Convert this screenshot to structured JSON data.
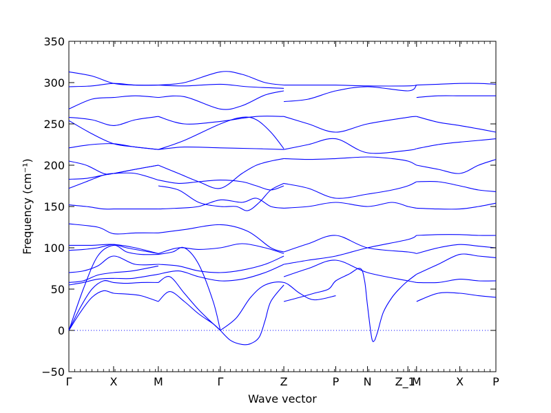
{
  "chart_data": {
    "type": "line",
    "title": "",
    "xlabel": "Wave vector",
    "ylabel": "Frequency (cm⁻¹)",
    "ylim": [
      -50,
      350
    ],
    "yticks": [
      -50,
      0,
      50,
      100,
      150,
      200,
      250,
      300,
      350
    ],
    "xlim": [
      0,
      14.8
    ],
    "hsym_points": [
      {
        "label": "Γ",
        "x": 0
      },
      {
        "label": "X",
        "x": 1.55
      },
      {
        "label": "M",
        "x": 3.1
      },
      {
        "label": "Γ",
        "x": 5.25
      },
      {
        "label": "Z",
        "x": 7.45
      },
      {
        "label": "P",
        "x": 9.25
      },
      {
        "label": "N",
        "x": 10.35
      },
      {
        "label": "Z_1",
        "x": 11.75
      },
      {
        "label": "M",
        "x": 12.05
      },
      {
        "label": "X",
        "x": 13.55
      },
      {
        "label": "P",
        "x": 14.8
      }
    ],
    "zero_line": {
      "y": 0,
      "style": "dotted"
    },
    "grid": false,
    "series_color": "#0000ff",
    "series": [
      {
        "x": [
          0,
          0.4,
          0.8,
          1.2,
          1.55,
          2.0,
          2.5,
          3.1
        ],
        "y": [
          0,
          22,
          40,
          48,
          45,
          44,
          42,
          35
        ]
      },
      {
        "x": [
          0,
          0.4,
          0.8,
          1.2,
          1.55,
          2.0,
          2.5,
          3.1
        ],
        "y": [
          0,
          28,
          50,
          60,
          58,
          57,
          58,
          58
        ]
      },
      {
        "x": [
          0,
          0.5,
          1.0,
          1.55,
          2.0,
          2.5,
          3.1
        ],
        "y": [
          0,
          50,
          90,
          103,
          95,
          92,
          92
        ]
      },
      {
        "x": [
          3.1,
          3.5,
          4.0,
          4.5,
          5.0,
          5.25
        ],
        "y": [
          35,
          47,
          35,
          20,
          8,
          0
        ]
      },
      {
        "x": [
          3.1,
          3.5,
          4.0,
          4.5,
          5.0,
          5.25
        ],
        "y": [
          58,
          65,
          45,
          25,
          8,
          0
        ]
      },
      {
        "x": [
          3.1,
          3.6,
          4.0,
          4.5,
          5.0,
          5.25
        ],
        "y": [
          92,
          95,
          100,
          80,
          35,
          0
        ]
      },
      {
        "x": [
          5.25,
          5.6,
          6.0,
          6.3,
          6.6,
          6.8,
          7.0,
          7.45
        ],
        "y": [
          0,
          -12,
          -17,
          -16,
          -8,
          12,
          35,
          55
        ]
      },
      {
        "x": [
          5.25,
          5.8,
          6.3,
          6.8,
          7.45,
          8.0,
          8.5,
          9.25
        ],
        "y": [
          0,
          15,
          40,
          55,
          58,
          45,
          37,
          42
        ]
      },
      {
        "x": [
          7.45,
          8.0,
          8.5,
          9.0,
          9.25,
          9.7,
          10.1,
          10.25,
          10.35,
          10.5,
          10.6
        ],
        "y": [
          35,
          40,
          45,
          50,
          60,
          68,
          75,
          60,
          30,
          -10,
          -12
        ]
      },
      {
        "x": [
          10.6,
          10.7,
          10.9,
          11.2,
          11.5,
          11.75,
          12.05
        ],
        "y": [
          -12,
          -2,
          22,
          40,
          52,
          60,
          68
        ]
      },
      {
        "x": [
          0,
          0.5,
          1.0,
          1.55,
          2.2,
          3.1
        ],
        "y": [
          55,
          58,
          62,
          63,
          63,
          68
        ]
      },
      {
        "x": [
          0,
          0.5,
          1.0,
          1.55,
          2.2,
          3.1
        ],
        "y": [
          58,
          60,
          67,
          70,
          72,
          78
        ]
      },
      {
        "x": [
          0,
          0.5,
          1.0,
          1.55,
          2.3,
          3.1
        ],
        "y": [
          70,
          72,
          78,
          90,
          80,
          80
        ]
      },
      {
        "x": [
          0,
          0.5,
          1.0,
          1.55,
          2.0,
          3.1
        ],
        "y": [
          97,
          98,
          100,
          104,
          100,
          93
        ]
      },
      {
        "x": [
          0,
          0.8,
          1.55,
          2.3,
          3.1
        ],
        "y": [
          103,
          103,
          104,
          100,
          93
        ]
      },
      {
        "x": [
          3.1,
          3.8,
          4.5,
          5.25,
          6.0,
          6.8,
          7.45
        ],
        "y": [
          68,
          72,
          65,
          60,
          62,
          70,
          80
        ]
      },
      {
        "x": [
          3.1,
          3.8,
          4.5,
          5.25,
          6.0,
          6.8,
          7.45
        ],
        "y": [
          80,
          78,
          72,
          70,
          73,
          80,
          90
        ]
      },
      {
        "x": [
          3.1,
          3.8,
          4.5,
          5.25,
          6.0,
          6.8,
          7.45
        ],
        "y": [
          93,
          100,
          98,
          100,
          105,
          100,
          93
        ]
      },
      {
        "x": [
          0,
          1.0,
          1.55,
          2.3,
          3.1
        ],
        "y": [
          129,
          125,
          117,
          118,
          118
        ]
      },
      {
        "x": [
          3.1,
          4.0,
          5.25,
          6.2,
          7.0,
          7.45
        ],
        "y": [
          118,
          122,
          128,
          120,
          100,
          95
        ]
      },
      {
        "x": [
          7.45,
          8.3,
          9.25,
          10.35,
          11.75,
          12.05
        ],
        "y": [
          95,
          105,
          115,
          100,
          95,
          93
        ]
      },
      {
        "x": [
          7.45,
          8.3,
          9.25,
          10.35,
          11.75,
          12.05
        ],
        "y": [
          80,
          85,
          90,
          100,
          110,
          115
        ]
      },
      {
        "x": [
          7.45,
          8.3,
          9.25,
          10.35,
          11.75,
          12.05
        ],
        "y": [
          65,
          75,
          85,
          70,
          60,
          58
        ]
      },
      {
        "x": [
          12.05,
          12.8,
          13.55,
          14.2,
          14.8
        ],
        "y": [
          115,
          116,
          116,
          115,
          115
        ]
      },
      {
        "x": [
          12.05,
          12.8,
          13.55,
          14.2,
          14.8
        ],
        "y": [
          93,
          100,
          104,
          102,
          100
        ]
      },
      {
        "x": [
          12.05,
          12.8,
          13.55,
          14.2,
          14.8
        ],
        "y": [
          68,
          80,
          92,
          90,
          88
        ]
      },
      {
        "x": [
          12.05,
          12.8,
          13.55,
          14.2,
          14.8
        ],
        "y": [
          58,
          58,
          62,
          60,
          60
        ]
      },
      {
        "x": [
          12.05,
          12.8,
          13.55,
          14.2,
          14.8
        ],
        "y": [
          35,
          45,
          45,
          42,
          40
        ]
      },
      {
        "x": [
          0,
          0.6,
          1.2,
          1.55,
          2.3,
          3.1
        ],
        "y": [
          152,
          150,
          147,
          147,
          147,
          147
        ]
      },
      {
        "x": [
          0,
          0.6,
          1.2,
          1.55,
          2.3,
          3.1
        ],
        "y": [
          172,
          180,
          188,
          190,
          190,
          182
        ]
      },
      {
        "x": [
          0,
          0.6,
          1.2,
          1.55,
          2.3,
          3.1
        ],
        "y": [
          183,
          184,
          188,
          190,
          195,
          200
        ]
      },
      {
        "x": [
          0,
          0.6,
          1.2,
          1.55,
          2.3,
          3.1
        ],
        "y": [
          205,
          200,
          190,
          190,
          195,
          200
        ]
      },
      {
        "x": [
          3.1,
          3.8,
          4.5,
          5.25,
          6.0,
          6.5,
          7.0,
          7.45
        ],
        "y": [
          200,
          190,
          180,
          172,
          190,
          200,
          205,
          208
        ]
      },
      {
        "x": [
          3.1,
          3.8,
          4.5,
          5.25,
          6.0,
          6.5,
          7.0,
          7.45
        ],
        "y": [
          182,
          178,
          180,
          182,
          180,
          175,
          170,
          175
        ]
      },
      {
        "x": [
          3.1,
          3.8,
          4.5,
          5.25,
          6.0,
          6.5,
          7.0,
          7.45
        ],
        "y": [
          147,
          148,
          150,
          158,
          155,
          160,
          150,
          148
        ]
      },
      {
        "x": [
          3.1,
          3.8,
          4.5,
          5.25,
          5.8,
          6.2,
          6.6,
          7.0,
          7.45
        ],
        "y": [
          175,
          170,
          155,
          150,
          150,
          145,
          155,
          170,
          178
        ]
      },
      {
        "x": [
          7.45,
          8.3,
          9.25,
          10.35,
          11.2,
          11.75,
          12.05
        ],
        "y": [
          208,
          207,
          208,
          210,
          208,
          205,
          200
        ]
      },
      {
        "x": [
          7.45,
          8.3,
          9.25,
          10.35,
          11.2,
          11.75,
          12.05
        ],
        "y": [
          178,
          172,
          160,
          165,
          170,
          175,
          180
        ]
      },
      {
        "x": [
          7.45,
          8.3,
          9.25,
          10.35,
          11.2,
          11.75,
          12.05
        ],
        "y": [
          148,
          150,
          155,
          150,
          155,
          150,
          148
        ]
      },
      {
        "x": [
          12.05,
          12.8,
          13.55,
          14.2,
          14.8
        ],
        "y": [
          148,
          147,
          147,
          150,
          154
        ]
      },
      {
        "x": [
          12.05,
          12.8,
          13.55,
          14.2,
          14.8
        ],
        "y": [
          180,
          180,
          175,
          170,
          168
        ]
      },
      {
        "x": [
          12.05,
          12.8,
          13.55,
          14.2,
          14.8
        ],
        "y": [
          200,
          195,
          190,
          200,
          207
        ]
      },
      {
        "x": [
          0,
          0.8,
          1.55,
          2.3,
          3.1
        ],
        "y": [
          221,
          225,
          226,
          222,
          219
        ]
      },
      {
        "x": [
          0,
          0.8,
          1.55,
          2.3,
          3.1
        ],
        "y": [
          254,
          238,
          226,
          222,
          219
        ]
      },
      {
        "x": [
          0,
          0.8,
          1.55,
          2.3,
          3.1
        ],
        "y": [
          258,
          255,
          248,
          255,
          259
        ]
      },
      {
        "x": [
          3.1,
          4.0,
          5.25,
          6.5,
          7.45
        ],
        "y": [
          219,
          222,
          221,
          220,
          219
        ]
      },
      {
        "x": [
          3.1,
          4.0,
          5.25,
          6.5,
          7.45
        ],
        "y": [
          259,
          250,
          253,
          259,
          259
        ]
      },
      {
        "x": [
          3.1,
          4.0,
          5.25,
          6.0,
          6.5,
          7.0,
          7.45
        ],
        "y": [
          219,
          230,
          250,
          258,
          255,
          240,
          220
        ]
      },
      {
        "x": [
          7.45,
          8.3,
          9.25,
          10.35,
          11.75,
          12.05
        ],
        "y": [
          219,
          225,
          232,
          215,
          218,
          220
        ]
      },
      {
        "x": [
          7.45,
          8.3,
          9.25,
          10.35,
          11.75,
          12.05
        ],
        "y": [
          259,
          250,
          240,
          250,
          258,
          259
        ]
      },
      {
        "x": [
          12.05,
          12.8,
          13.55,
          14.2,
          14.8
        ],
        "y": [
          220,
          225,
          228,
          230,
          232
        ]
      },
      {
        "x": [
          12.05,
          12.8,
          13.55,
          14.2,
          14.8
        ],
        "y": [
          259,
          252,
          248,
          244,
          240
        ]
      },
      {
        "x": [
          0,
          0.8,
          1.55,
          2.3,
          3.1
        ],
        "y": [
          268,
          280,
          282,
          284,
          282
        ]
      },
      {
        "x": [
          0,
          0.8,
          1.55,
          2.3,
          3.1
        ],
        "y": [
          295,
          296,
          299,
          297,
          297
        ]
      },
      {
        "x": [
          0,
          0.8,
          1.55,
          2.3,
          3.1
        ],
        "y": [
          313,
          308,
          299,
          297,
          297
        ]
      },
      {
        "x": [
          3.1,
          4.0,
          5.25,
          6.0,
          6.8,
          7.45
        ],
        "y": [
          282,
          283,
          268,
          272,
          285,
          290
        ]
      },
      {
        "x": [
          3.1,
          4.0,
          5.25,
          6.0,
          6.8,
          7.45
        ],
        "y": [
          297,
          300,
          313,
          310,
          300,
          297
        ]
      },
      {
        "x": [
          3.1,
          4.0,
          5.25,
          6.2,
          7.45
        ],
        "y": [
          297,
          296,
          298,
          295,
          293
        ]
      },
      {
        "x": [
          7.45,
          8.3,
          9.25,
          10.35,
          11.75,
          12.05
        ],
        "y": [
          277,
          280,
          290,
          295,
          290,
          297
        ]
      },
      {
        "x": [
          7.45,
          8.3,
          9.25,
          10.35,
          11.75,
          12.05
        ],
        "y": [
          297,
          297,
          297,
          296,
          296,
          297
        ]
      },
      {
        "x": [
          12.05,
          12.8,
          13.55,
          14.2,
          14.8
        ],
        "y": [
          297,
          298,
          299,
          299,
          298
        ]
      },
      {
        "x": [
          12.05,
          12.8,
          13.55,
          14.2,
          14.8
        ],
        "y": [
          282,
          284,
          284,
          284,
          284
        ]
      }
    ]
  }
}
